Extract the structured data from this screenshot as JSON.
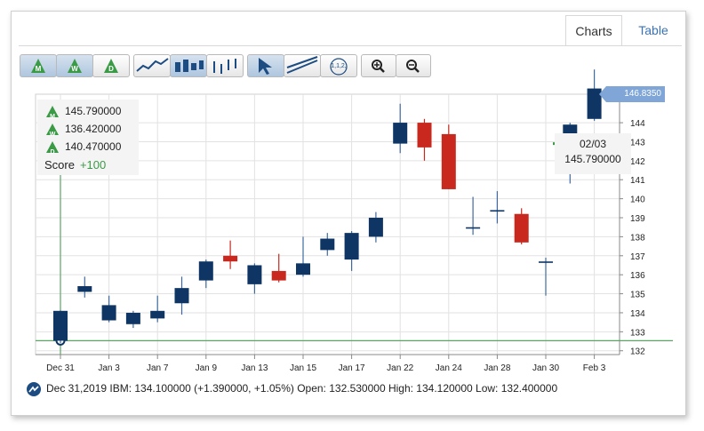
{
  "tabs": {
    "charts": "Charts",
    "table": "Table"
  },
  "toolbar": {
    "period_buttons": [
      "M",
      "W",
      "D"
    ],
    "drawing_label": "1,1,2,",
    "zoom_in": "zoom-in-icon",
    "zoom_out": "zoom-out-icon"
  },
  "legend": {
    "rows": [
      {
        "letter": "M",
        "value": "145.790000"
      },
      {
        "letter": "W",
        "value": "136.420000"
      },
      {
        "letter": "D",
        "value": "140.470000"
      }
    ],
    "score_label": "Score",
    "score_value": "+100"
  },
  "tooltip": {
    "date": "02/03",
    "value": "145.790000"
  },
  "last_price": "146.8350",
  "footer": {
    "text": "Dec 31,2019 IBM: 134.100000 (+1.390000, +1.05%) Open: 132.530000 High: 134.120000 Low: 132.400000"
  },
  "colors": {
    "up": "#0e3563",
    "down": "#c8281e",
    "signal": "#3a9a45",
    "grid": "#e2e2e2",
    "price_tag": "#7fa6d6"
  },
  "chart_data": {
    "type": "candlestick",
    "symbol": "IBM",
    "ylim": [
      131.8,
      145.5
    ],
    "yticks": [
      132,
      133,
      134,
      135,
      136,
      137,
      138,
      139,
      140,
      141,
      142,
      143,
      144
    ],
    "xlabels": [
      {
        "i": 0,
        "label": "Dec 31"
      },
      {
        "i": 2,
        "label": "Jan 3"
      },
      {
        "i": 4,
        "label": "Jan 7"
      },
      {
        "i": 6,
        "label": "Jan 9"
      },
      {
        "i": 8,
        "label": "Jan 13"
      },
      {
        "i": 10,
        "label": "Jan 15"
      },
      {
        "i": 12,
        "label": "Jan 17"
      },
      {
        "i": 14,
        "label": "Jan 22"
      },
      {
        "i": 16,
        "label": "Jan 24"
      },
      {
        "i": 18,
        "label": "Jan 28"
      },
      {
        "i": 20,
        "label": "Jan 30"
      },
      {
        "i": 22,
        "label": "Feb 3"
      }
    ],
    "candles": [
      {
        "o": 132.53,
        "h": 134.12,
        "l": 132.4,
        "c": 134.1
      },
      {
        "o": 135.1,
        "h": 135.9,
        "l": 134.8,
        "c": 135.4
      },
      {
        "o": 133.6,
        "h": 134.9,
        "l": 133.5,
        "c": 134.4
      },
      {
        "o": 133.4,
        "h": 134.1,
        "l": 133.2,
        "c": 134.0
      },
      {
        "o": 133.7,
        "h": 134.9,
        "l": 133.5,
        "c": 134.1
      },
      {
        "o": 134.5,
        "h": 135.9,
        "l": 133.9,
        "c": 135.3
      },
      {
        "o": 135.7,
        "h": 136.8,
        "l": 135.3,
        "c": 136.7
      },
      {
        "o": 137.0,
        "h": 137.8,
        "l": 136.3,
        "c": 136.7
      },
      {
        "o": 135.5,
        "h": 136.6,
        "l": 135.0,
        "c": 136.5
      },
      {
        "o": 136.2,
        "h": 137.1,
        "l": 135.6,
        "c": 135.7
      },
      {
        "o": 136.0,
        "h": 138.0,
        "l": 135.9,
        "c": 136.6
      },
      {
        "o": 137.3,
        "h": 138.2,
        "l": 137.0,
        "c": 137.9
      },
      {
        "o": 136.8,
        "h": 138.3,
        "l": 136.2,
        "c": 138.2
      },
      {
        "o": 138.0,
        "h": 139.3,
        "l": 137.7,
        "c": 139.0
      },
      {
        "o": 142.9,
        "h": 145.0,
        "l": 142.4,
        "c": 144.0
      },
      {
        "o": 144.0,
        "h": 144.2,
        "l": 142.0,
        "c": 142.7
      },
      {
        "o": 143.4,
        "h": 143.9,
        "l": 140.5,
        "c": 140.5
      },
      {
        "o": 138.5,
        "h": 140.1,
        "l": 138.1,
        "c": 138.5
      },
      {
        "o": 139.4,
        "h": 140.4,
        "l": 138.7,
        "c": 139.4
      },
      {
        "o": 139.2,
        "h": 139.5,
        "l": 137.6,
        "c": 137.7
      },
      {
        "o": 136.7,
        "h": 136.9,
        "l": 134.9,
        "c": 136.7
      },
      {
        "o": 143.2,
        "h": 144.0,
        "l": 140.8,
        "c": 143.9
      },
      {
        "o": 144.2,
        "h": 146.8,
        "l": 144.1,
        "c": 145.8
      }
    ],
    "hline": 132.53,
    "green_line": 142.9
  }
}
